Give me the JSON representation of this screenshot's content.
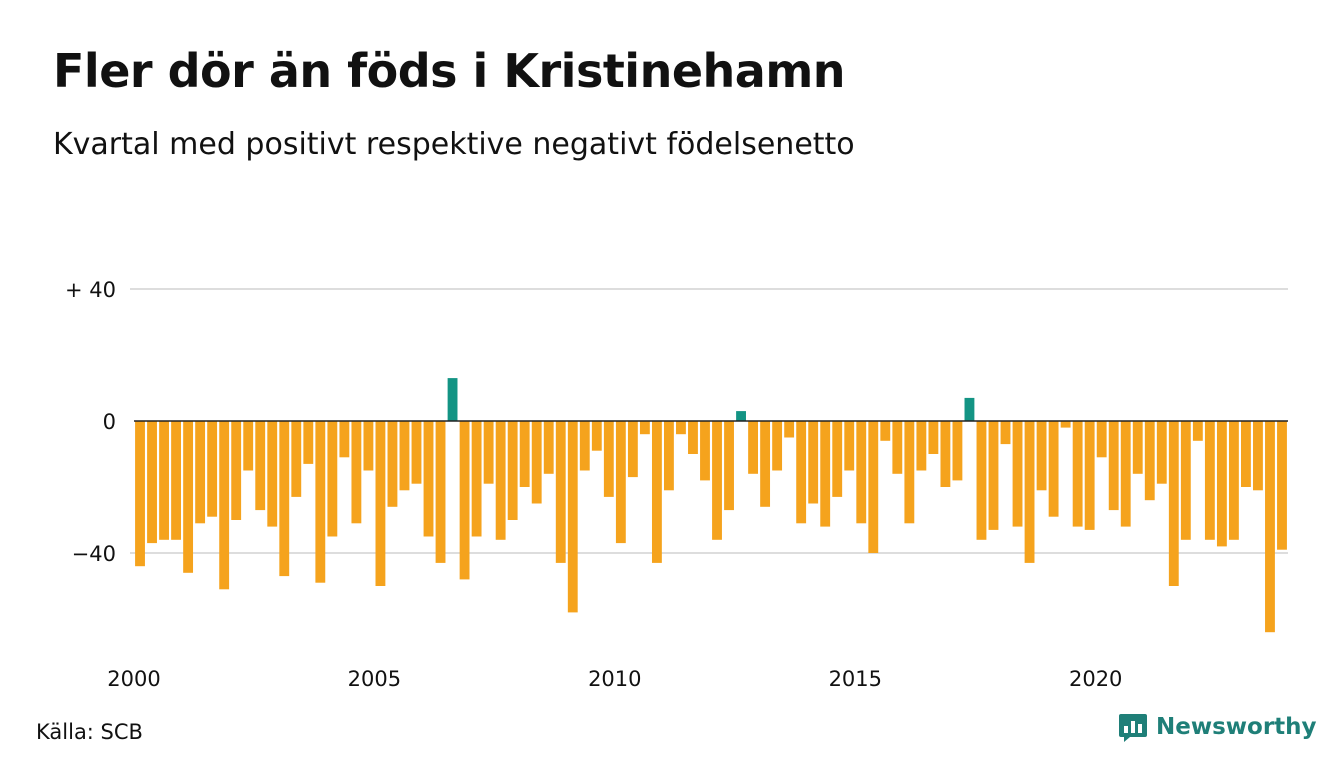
{
  "chart_data": {
    "type": "bar",
    "title": "Fler dör än föds i Kristinehamn",
    "subtitle": "Kvartal med positivt respektive negativt födelsenetto",
    "source": "Källa: SCB",
    "brand": "Newsworthy",
    "xlabel": "",
    "ylabel": "",
    "x_ticks": [
      "2000",
      "2005",
      "2010",
      "2015",
      "2020"
    ],
    "y_ticks": [
      {
        "value": 40,
        "label": "+ 40"
      },
      {
        "value": 0,
        "label": "0"
      },
      {
        "value": -40,
        "label": "−40"
      }
    ],
    "ylim": [
      -66,
      40
    ],
    "grid": true,
    "colors": {
      "positive": "#139484",
      "negative": "#f5a31d",
      "grid": "#dddddd",
      "zero_line": "#222222"
    },
    "start_year": 2000,
    "quarters_per_year": 4,
    "values": [
      -44,
      -37,
      -36,
      -36,
      -46,
      -31,
      -29,
      -51,
      -30,
      -15,
      -27,
      -32,
      -47,
      -23,
      -13,
      -49,
      -35,
      -11,
      -31,
      -15,
      -50,
      -26,
      -21,
      -19,
      -35,
      -43,
      13,
      -48,
      -35,
      -19,
      -36,
      -30,
      -20,
      -25,
      -16,
      -43,
      -58,
      -15,
      -9,
      -23,
      -37,
      -17,
      -4,
      -43,
      -21,
      -4,
      -10,
      -18,
      -36,
      -27,
      3,
      -16,
      -26,
      -15,
      -5,
      -31,
      -25,
      -32,
      -23,
      -15,
      -31,
      -40,
      -6,
      -16,
      -31,
      -15,
      -10,
      -20,
      -18,
      7,
      -36,
      -33,
      -7,
      -32,
      -43,
      -21,
      -29,
      -2,
      -32,
      -33,
      -11,
      -27,
      -32,
      -16,
      -24,
      -19,
      -50,
      -36,
      -6,
      -36,
      -38,
      -36,
      -20,
      -21,
      -64,
      -39
    ]
  }
}
